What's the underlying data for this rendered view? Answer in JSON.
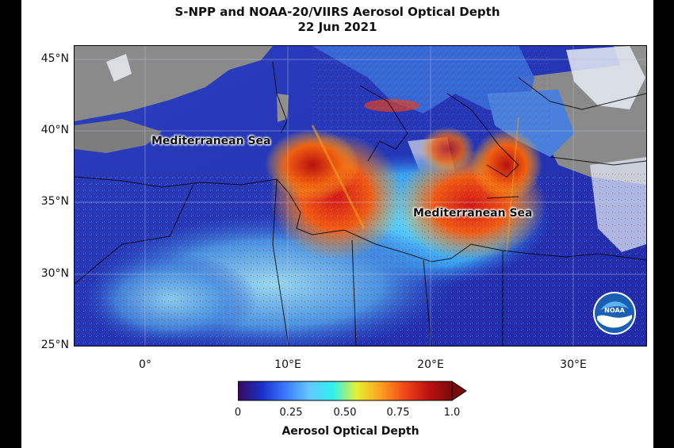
{
  "title_line1": "S-NPP and NOAA-20/VIIRS Aerosol Optical Depth",
  "title_line2": "22 Jun 2021",
  "latitude_labels": [
    "45°N",
    "40°N",
    "35°N",
    "30°N",
    "25°N"
  ],
  "longitude_labels": [
    "0°",
    "10°E",
    "20°E",
    "30°E"
  ],
  "sea_labels": [
    "Mediterranean Sea",
    "Mediterranean Sea"
  ],
  "colorbar": {
    "label": "Aerosol Optical Depth",
    "ticks": [
      "0",
      "0.25",
      "0.50",
      "0.75",
      "1.0"
    ],
    "colors": [
      "#3a0a5e",
      "#1a2fc8",
      "#3c78ff",
      "#64c8ff",
      "#2ef0f0",
      "#e8f030",
      "#ffa020",
      "#f04818",
      "#c01010",
      "#7a0a0a"
    ]
  },
  "logo_icon": "noaa-logo-icon"
}
